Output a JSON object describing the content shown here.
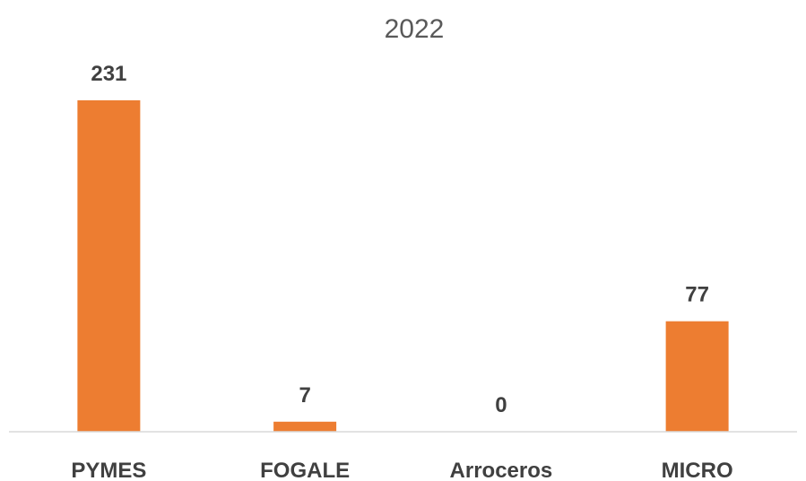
{
  "chart_data": {
    "type": "bar",
    "title": "2022",
    "categories": [
      "PYMES",
      "FOGALE",
      "Arroceros",
      "MICRO"
    ],
    "values": [
      231,
      7,
      0,
      77
    ],
    "data_labels": [
      "231",
      "7",
      "0",
      "77"
    ],
    "xlabel": "",
    "ylabel": "",
    "ylim": [
      0,
      231
    ],
    "grid": false,
    "legend": "none",
    "bar_color": "#ED7D31",
    "axis_color": "#D9D9D9"
  }
}
